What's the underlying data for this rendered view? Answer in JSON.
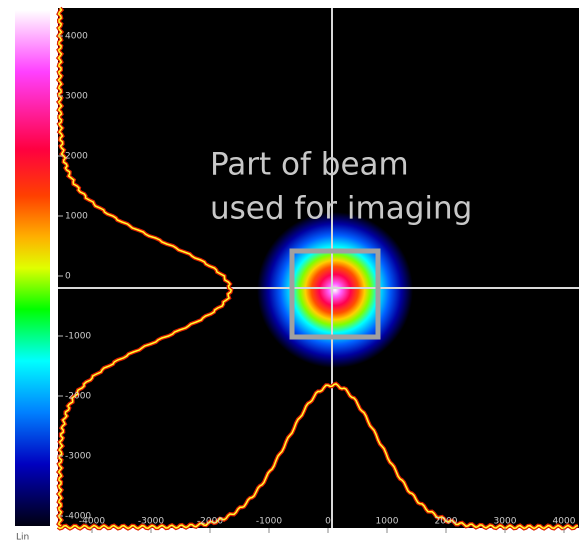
{
  "annotation": {
    "line1": "Part of beam",
    "line2": "used for imaging"
  },
  "y_axis_ticks": [
    "4000",
    "3000",
    "2000",
    "1000",
    "0",
    "-1000",
    "-2000",
    "-3000",
    "-4000"
  ],
  "x_axis_ticks": [
    "-4000",
    "-3000",
    "-2000",
    "-1000",
    "0",
    "1000",
    "2000",
    "3000",
    "4000"
  ],
  "colorbar_label": "Lin"
}
